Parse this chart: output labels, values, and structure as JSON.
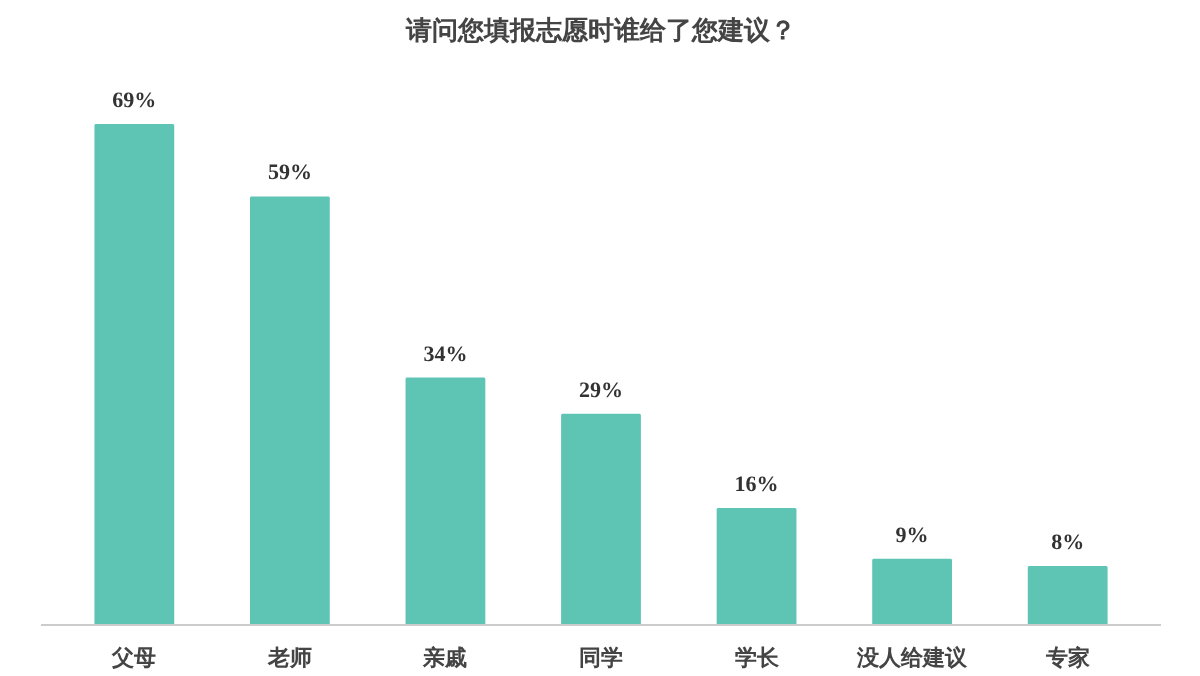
{
  "chart_data": {
    "type": "bar",
    "title": "请问您填报志愿时谁给了您建议？",
    "categories": [
      "父母",
      "老师",
      "亲戚",
      "同学",
      "学长",
      "没人给建议",
      "专家"
    ],
    "values": [
      69,
      59,
      34,
      29,
      16,
      9,
      8
    ],
    "color": "#5ec4b4",
    "value_labels": [
      "69%",
      "59%",
      "34%",
      "29%",
      "16%",
      "9%",
      "8%"
    ]
  }
}
